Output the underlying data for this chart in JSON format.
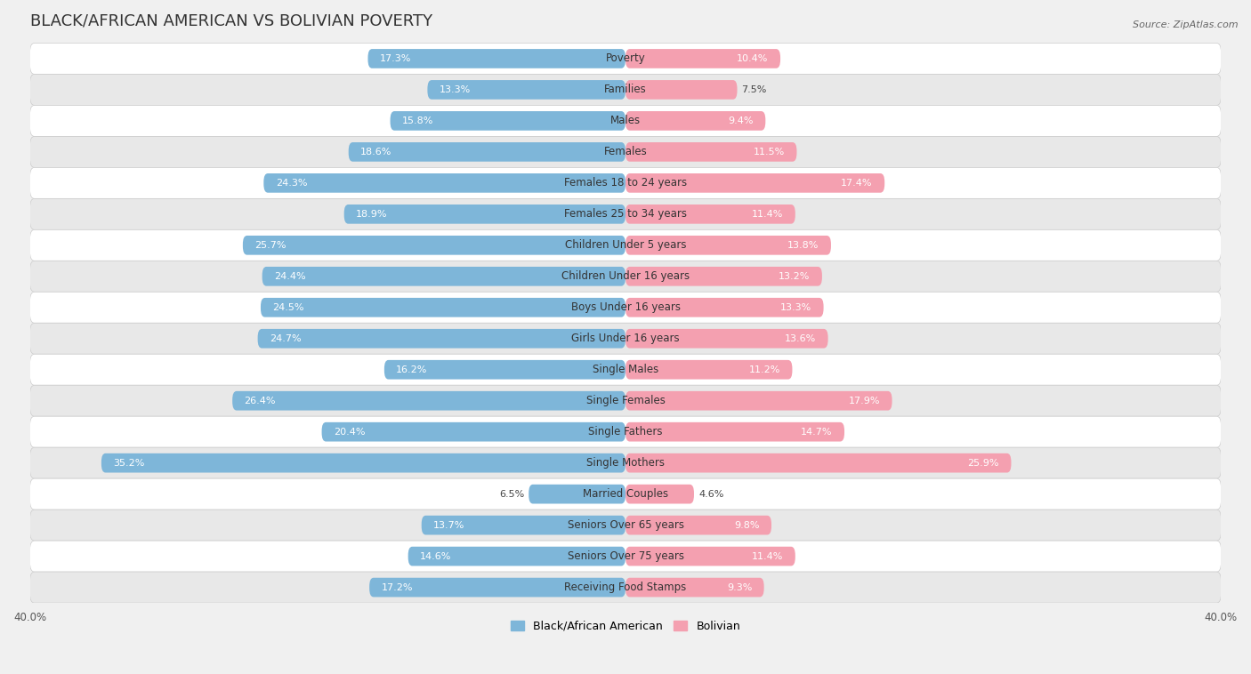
{
  "title": "BLACK/AFRICAN AMERICAN VS BOLIVIAN POVERTY",
  "source": "Source: ZipAtlas.com",
  "categories": [
    "Poverty",
    "Families",
    "Males",
    "Females",
    "Females 18 to 24 years",
    "Females 25 to 34 years",
    "Children Under 5 years",
    "Children Under 16 years",
    "Boys Under 16 years",
    "Girls Under 16 years",
    "Single Males",
    "Single Females",
    "Single Fathers",
    "Single Mothers",
    "Married Couples",
    "Seniors Over 65 years",
    "Seniors Over 75 years",
    "Receiving Food Stamps"
  ],
  "left_values": [
    17.3,
    13.3,
    15.8,
    18.6,
    24.3,
    18.9,
    25.7,
    24.4,
    24.5,
    24.7,
    16.2,
    26.4,
    20.4,
    35.2,
    6.5,
    13.7,
    14.6,
    17.2
  ],
  "right_values": [
    10.4,
    7.5,
    9.4,
    11.5,
    17.4,
    11.4,
    13.8,
    13.2,
    13.3,
    13.6,
    11.2,
    17.9,
    14.7,
    25.9,
    4.6,
    9.8,
    11.4,
    9.3
  ],
  "left_color": "#7EB6D9",
  "right_color": "#F4A0B0",
  "left_label": "Black/African American",
  "right_label": "Bolivian",
  "xlim": 40.0,
  "bg_color": "#F0F0F0",
  "row_color_odd": "#E8E8E8",
  "row_color_even": "#FFFFFF",
  "title_fontsize": 13,
  "label_fontsize": 8.5,
  "value_fontsize": 8.0,
  "tick_fontsize": 8.5,
  "source_fontsize": 8.0
}
